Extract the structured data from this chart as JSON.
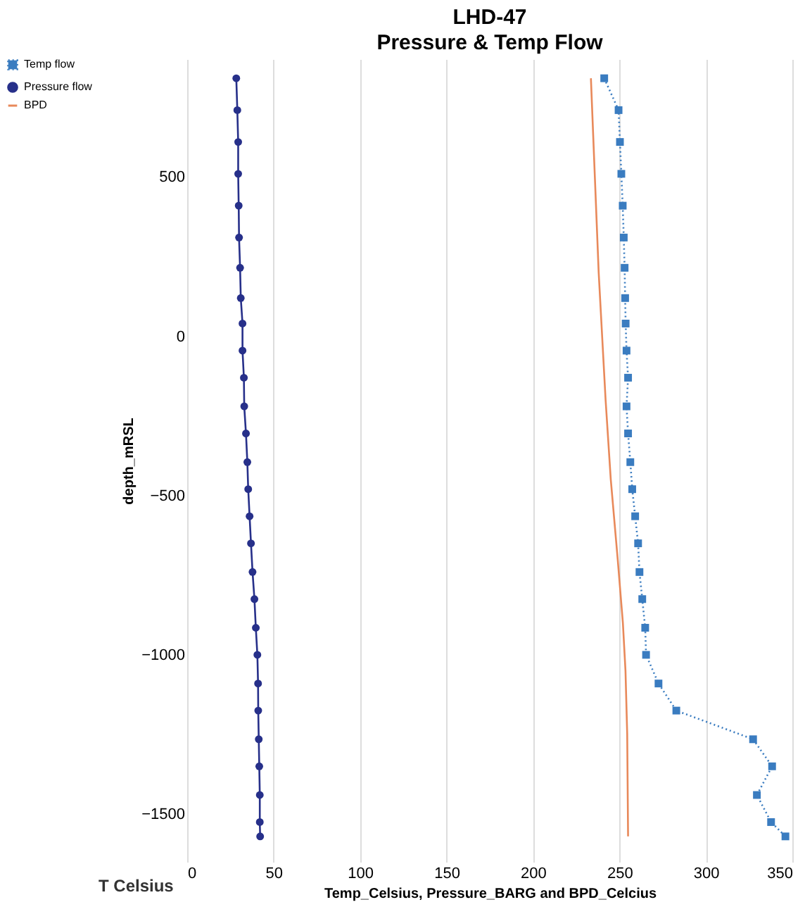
{
  "chart_data": {
    "type": "line",
    "title": "LHD-47",
    "subtitle": "Pressure & Temp Flow",
    "xlabel": "Temp_Celsius, Pressure_BARG and BPD_Celcius",
    "ylabel": "depth_mRSL",
    "annotations": [
      "T Celsius"
    ],
    "xlim": [
      0,
      350
    ],
    "xticks": [
      0,
      50,
      100,
      150,
      200,
      250,
      300,
      350
    ],
    "ylim": [
      -1650,
      870
    ],
    "yticks": [
      -1500,
      -1000,
      -500,
      0,
      500
    ],
    "grid": "x",
    "legend": "left",
    "series": [
      {
        "name": "Temp flow",
        "color": "#3a7cc0",
        "marker": "square",
        "line_style": "dotted",
        "x": [
          241.2,
          249.5,
          250.3,
          251.1,
          251.9,
          252.5,
          253,
          253.3,
          253.6,
          254.1,
          255,
          254.1,
          255,
          256.3,
          257.4,
          259.1,
          260.8,
          261.6,
          263.2,
          264.9,
          265.4,
          272.6,
          282.9,
          327.3,
          338.3,
          329.5,
          337.7,
          346
        ],
        "values": [
          810,
          710,
          610,
          510,
          410,
          310,
          215,
          120,
          40,
          -45,
          -130,
          -220,
          -305,
          -395,
          -480,
          -565,
          -650,
          -740,
          -825,
          -915,
          -1000,
          -1090,
          -1175,
          -1265,
          -1350,
          -1440,
          -1525,
          -1570
        ]
      },
      {
        "name": "Pressure flow",
        "color": "#27308a",
        "marker": "circle",
        "line_style": "solid",
        "x": [
          28.4,
          29,
          29.5,
          29.5,
          29.8,
          30,
          30.6,
          31,
          32,
          32,
          32.8,
          33,
          34,
          34.8,
          35.3,
          36.1,
          36.9,
          37.8,
          38.9,
          39.7,
          40.6,
          41,
          41.1,
          41.4,
          41.7,
          42,
          42,
          42.2
        ],
        "values": [
          810,
          710,
          610,
          510,
          410,
          310,
          215,
          120,
          40,
          -45,
          -130,
          -220,
          -305,
          -395,
          -480,
          -565,
          -650,
          -740,
          -825,
          -915,
          -1000,
          -1090,
          -1175,
          -1265,
          -1350,
          -1440,
          -1525,
          -1570
        ]
      },
      {
        "name": "BPD",
        "color": "#e8895a",
        "marker": "none",
        "line_style": "solid",
        "x": [
          233.5,
          238,
          242,
          245,
          249,
          252,
          253.5,
          254.5,
          255
        ],
        "values": [
          810,
          200,
          -200,
          -450,
          -700,
          -900,
          -1050,
          -1250,
          -1570
        ]
      }
    ]
  }
}
